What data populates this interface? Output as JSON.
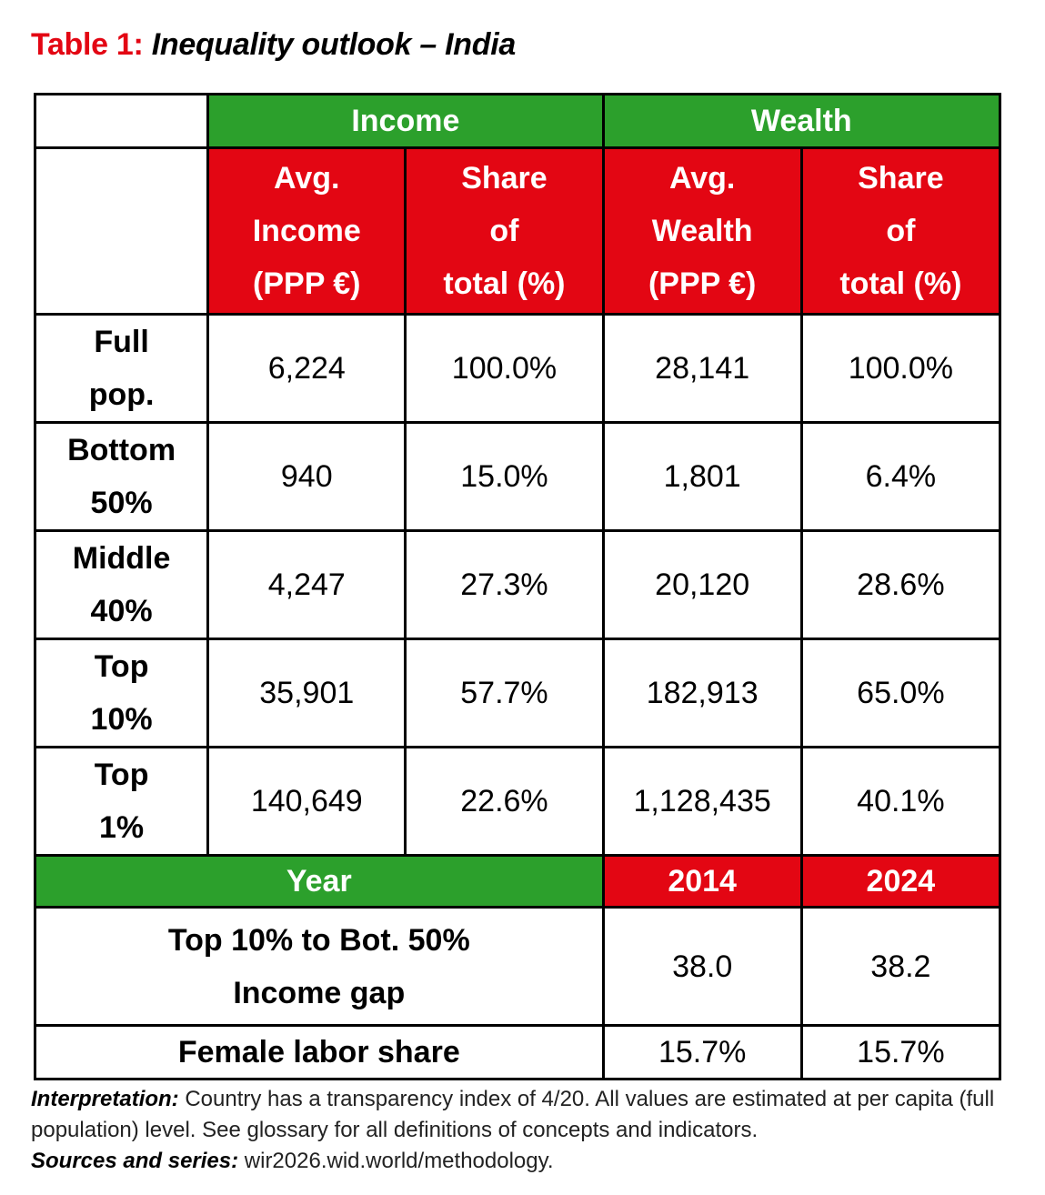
{
  "title": {
    "label": "Table 1:",
    "name": "Inequality outlook – India"
  },
  "table": {
    "group_headers": [
      "Income",
      "Wealth"
    ],
    "column_headers": [
      [
        "Avg.",
        "Income",
        "(PPP €)"
      ],
      [
        "Share",
        "of",
        "total (%)"
      ],
      [
        "Avg.",
        "Wealth",
        "(PPP €)"
      ],
      [
        "Share",
        "of",
        "total (%)"
      ]
    ],
    "rows": [
      {
        "label": [
          "Full",
          "pop."
        ],
        "avg_income": "6,224",
        "income_share": "100.0%",
        "avg_wealth": "28,141",
        "wealth_share": "100.0%"
      },
      {
        "label": [
          "Bottom",
          "50%"
        ],
        "avg_income": "940",
        "income_share": "15.0%",
        "avg_wealth": "1,801",
        "wealth_share": "6.4%"
      },
      {
        "label": [
          "Middle",
          "40%"
        ],
        "avg_income": "4,247",
        "income_share": "27.3%",
        "avg_wealth": "20,120",
        "wealth_share": "28.6%"
      },
      {
        "label": [
          "Top",
          "10%"
        ],
        "avg_income": "35,901",
        "income_share": "57.7%",
        "avg_wealth": "182,913",
        "wealth_share": "65.0%"
      },
      {
        "label": [
          "Top",
          "1%"
        ],
        "avg_income": "140,649",
        "income_share": "22.6%",
        "avg_wealth": "1,128,435",
        "wealth_share": "40.1%"
      }
    ],
    "year_header": {
      "label": "Year",
      "y1": "2014",
      "y2": "2024"
    },
    "indicators": [
      {
        "label": [
          "Top 10% to Bot. 50%",
          "Income gap"
        ],
        "v2014": "38.0",
        "v2024": "38.2"
      },
      {
        "label": [
          "Female labor share"
        ],
        "v2014": "15.7%",
        "v2024": "15.7%"
      }
    ]
  },
  "notes": {
    "interpretation_label": "Interpretation:",
    "interpretation_text": " Country has a transparency index of 4/20. All values are estimated at per capita (full population) level. See glossary for all definitions of concepts and indicators.",
    "sources_label": "Sources and series:",
    "sources_text": " wir2026.wid.world/methodology."
  },
  "colors": {
    "green": "#2ca02c",
    "red": "#e30613"
  }
}
